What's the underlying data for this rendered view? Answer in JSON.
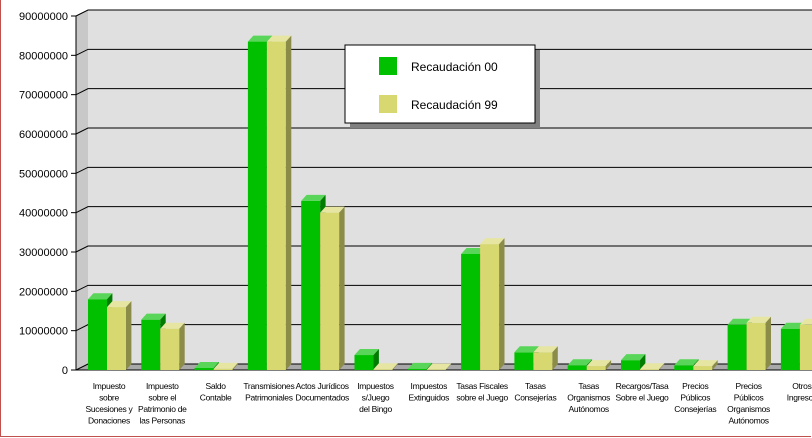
{
  "chart_data": {
    "type": "bar",
    "title": "",
    "xlabel": "",
    "ylabel": "",
    "ylim": [
      0,
      90000000
    ],
    "yticks": [
      0,
      10000000,
      20000000,
      30000000,
      40000000,
      50000000,
      60000000,
      70000000,
      80000000,
      90000000
    ],
    "grid": true,
    "legend_position": "top-center",
    "categories": [
      [
        "Impuesto",
        "sobre",
        "Sucesiones y",
        "Donaciones"
      ],
      [
        "Impuesto",
        "sobre el",
        "Patrimonio de",
        "las Personas"
      ],
      [
        "Saldo",
        "Contable"
      ],
      [
        "Transmisiones",
        "Patrimoniales"
      ],
      [
        "Actos Jurídicos",
        "Documentados"
      ],
      [
        "Impuestos",
        "s/Juego",
        "del Bingo"
      ],
      [
        "Impuestos",
        "Extinguidos"
      ],
      [
        "Tasas Fiscales",
        "sobre el Juego"
      ],
      [
        "Tasas",
        "Consejerías"
      ],
      [
        "Tasas",
        "Organismos",
        "Autónomos"
      ],
      [
        "Recargos/Tasa",
        "Sobre el Juego"
      ],
      [
        "Precios",
        "Públicos",
        "Consejerías"
      ],
      [
        "Precios",
        "Públicos",
        "Organismos",
        "Autónomos"
      ],
      [
        "Otros",
        "Ingresos"
      ]
    ],
    "series": [
      {
        "name": "Recaudación 00",
        "color": "#00c000",
        "values": [
          18000000,
          12800000,
          500000,
          83500000,
          43000000,
          3800000,
          300000,
          29500000,
          4500000,
          1200000,
          2500000,
          1200000,
          11500000,
          10500000
        ]
      },
      {
        "name": "Recaudación 99",
        "color": "#d8d870",
        "values": [
          16000000,
          10500000,
          300000,
          83500000,
          40000000,
          200000,
          100000,
          32000000,
          4500000,
          1000000,
          200000,
          1000000,
          12000000,
          11500000
        ]
      }
    ]
  }
}
